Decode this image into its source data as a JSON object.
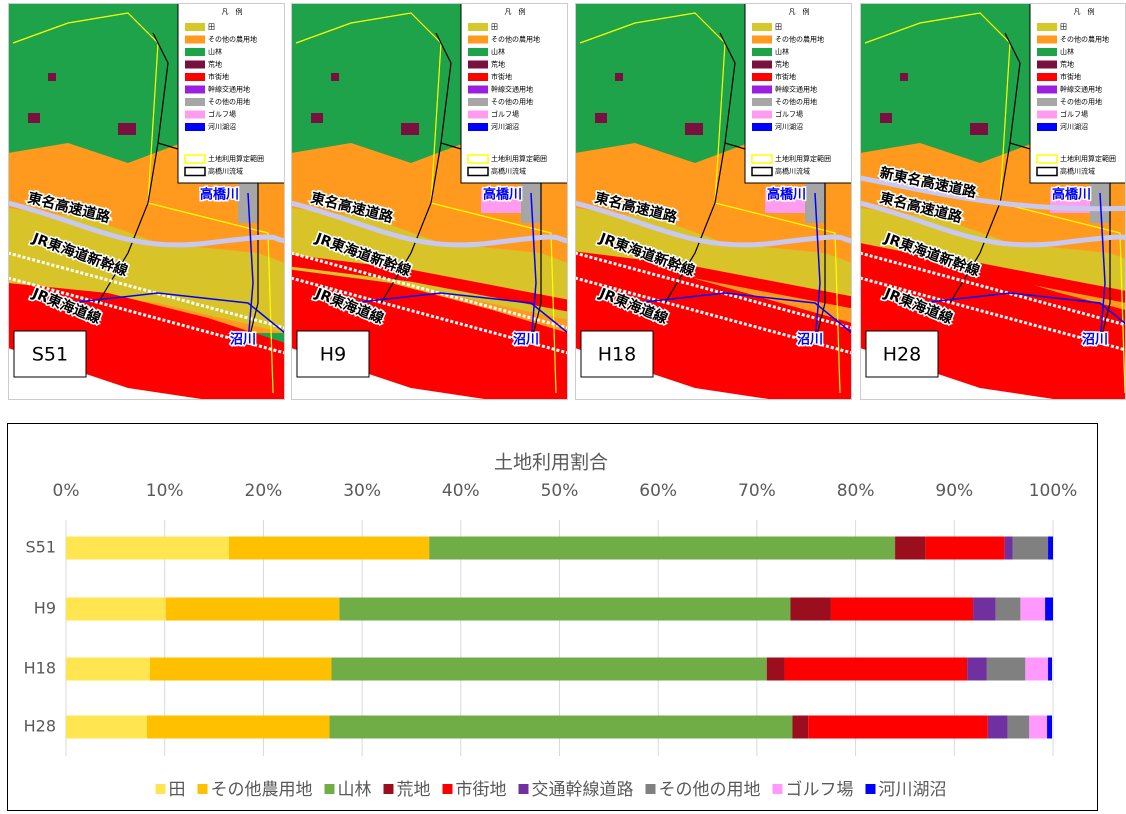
{
  "maps": {
    "legend": {
      "title": "凡　例",
      "items": [
        {
          "label": "田",
          "color": "#d4c82a"
        },
        {
          "label": "その他の農用地",
          "color": "#ff9a1f"
        },
        {
          "label": "山林",
          "color": "#1fa34a"
        },
        {
          "label": "荒地",
          "color": "#7a1040"
        },
        {
          "label": "市街地",
          "color": "#ff0000"
        },
        {
          "label": "幹線交通用地",
          "color": "#9b1fe0"
        },
        {
          "label": "その他の用地",
          "color": "#a6a6a6"
        },
        {
          "label": "ゴルフ場",
          "color": "#ff9cf0"
        },
        {
          "label": "河川湖沼",
          "color": "#0000ff"
        }
      ],
      "outlines": [
        {
          "label": "土地利用算定範囲",
          "color": "#ffff00"
        },
        {
          "label": "高橋川流域",
          "color": "#000000"
        }
      ]
    },
    "panels": [
      {
        "label": "S51",
        "roads": [
          "東名高速道路",
          "JR東海道新幹線",
          "JR東海道線"
        ],
        "rivers": [
          "高橋川",
          "沼川"
        ]
      },
      {
        "label": "H9",
        "roads": [
          "東名高速道路",
          "JR東海道新幹線",
          "JR東海道線"
        ],
        "rivers": [
          "高橋川",
          "沼川"
        ]
      },
      {
        "label": "H18",
        "roads": [
          "東名高速道路",
          "JR東海道新幹線",
          "JR東海道線"
        ],
        "rivers": [
          "高橋川",
          "沼川"
        ]
      },
      {
        "label": "H28",
        "roads": [
          "新東名高速道路",
          "東名高速道路",
          "JR東海道新幹線",
          "JR東海道線"
        ],
        "rivers": [
          "高橋川",
          "沼川"
        ]
      }
    ]
  },
  "chart_data": {
    "type": "stacked-bar-horizontal",
    "title": "土地利用割合",
    "categories": [
      "S51",
      "H9",
      "H18",
      "H28"
    ],
    "xlim": [
      0,
      100
    ],
    "xticks": [
      {
        "value": 0,
        "label": "0%"
      },
      {
        "value": 10,
        "label": "10%"
      },
      {
        "value": 20,
        "label": "20%"
      },
      {
        "value": 30,
        "label": "30%"
      },
      {
        "value": 40,
        "label": "40%"
      },
      {
        "value": 50,
        "label": "50%"
      },
      {
        "value": 60,
        "label": "60%"
      },
      {
        "value": 70,
        "label": "70%"
      },
      {
        "value": 80,
        "label": "80%"
      },
      {
        "value": 90,
        "label": "90%"
      },
      {
        "value": 100,
        "label": "100%"
      }
    ],
    "grid": true,
    "series": [
      {
        "name": "田",
        "color": "#ffe54f",
        "values": [
          16.5,
          10.1,
          8.5,
          8.2
        ]
      },
      {
        "name": "その他農用地",
        "color": "#ffc000",
        "values": [
          20.3,
          17.6,
          18.4,
          18.5
        ]
      },
      {
        "name": "山林",
        "color": "#70ad47",
        "values": [
          47.2,
          45.7,
          44.1,
          46.9
        ]
      },
      {
        "name": "荒地",
        "color": "#9b0e1d",
        "values": [
          3.1,
          4.1,
          1.8,
          1.6
        ]
      },
      {
        "name": "市街地",
        "color": "#ff0000",
        "values": [
          8.0,
          14.4,
          18.5,
          18.2
        ]
      },
      {
        "name": "交通幹線道路",
        "color": "#7030a0",
        "values": [
          0.8,
          2.3,
          2.0,
          2.0
        ]
      },
      {
        "name": "その他の用地",
        "color": "#808080",
        "values": [
          3.6,
          2.5,
          3.9,
          2.2
        ]
      },
      {
        "name": "ゴルフ場",
        "color": "#ff99ff",
        "values": [
          0,
          2.5,
          2.3,
          1.8
        ]
      },
      {
        "name": "河川湖沼",
        "color": "#0000ff",
        "values": [
          0.5,
          0.8,
          0.4,
          0.5
        ]
      }
    ],
    "legend": "bottom"
  }
}
